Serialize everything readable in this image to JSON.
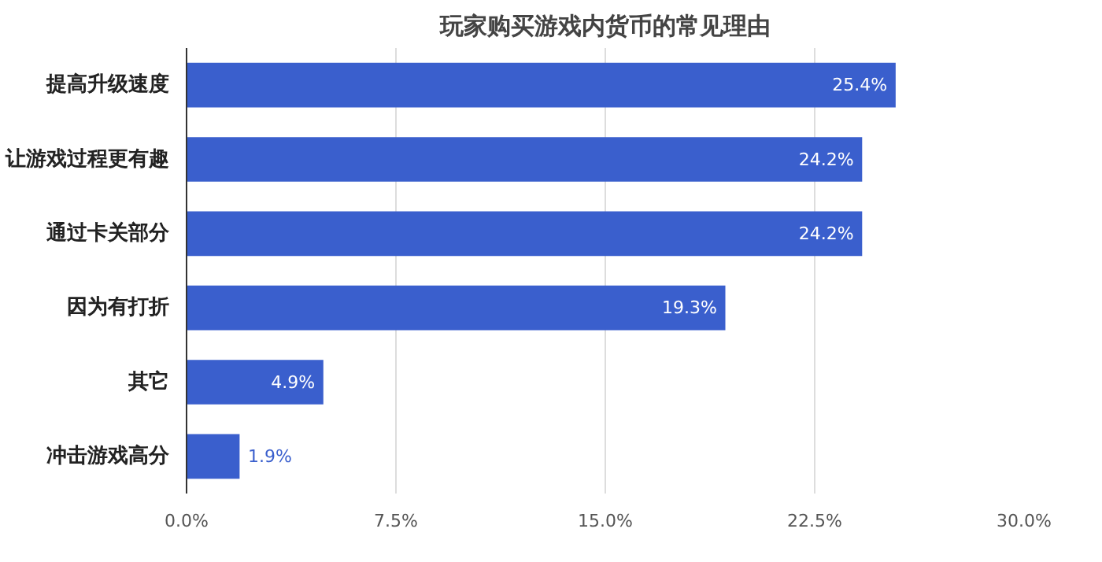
{
  "chart_data": {
    "type": "bar",
    "orientation": "horizontal",
    "title": "玩家购买游戏内货币的常见理由",
    "categories": [
      "提高升级速度",
      "让游戏过程更有趣",
      "通过卡关部分",
      "因为有打折",
      "其它",
      "冲击游戏高分"
    ],
    "values": [
      25.4,
      24.2,
      24.2,
      19.3,
      4.9,
      1.9
    ],
    "value_labels": [
      "25.4%",
      "24.2%",
      "24.2%",
      "19.3%",
      "4.9%",
      "1.9%"
    ],
    "color": "#3a5fcd",
    "xlim": [
      0,
      30
    ],
    "xticks": [
      {
        "value": 0,
        "label": "0.0%"
      },
      {
        "value": 7.5,
        "label": "7.5%"
      },
      {
        "value": 15,
        "label": "15.0%"
      },
      {
        "value": 22.5,
        "label": "22.5%"
      },
      {
        "value": 30,
        "label": "30.0%"
      }
    ],
    "grid": "x"
  }
}
